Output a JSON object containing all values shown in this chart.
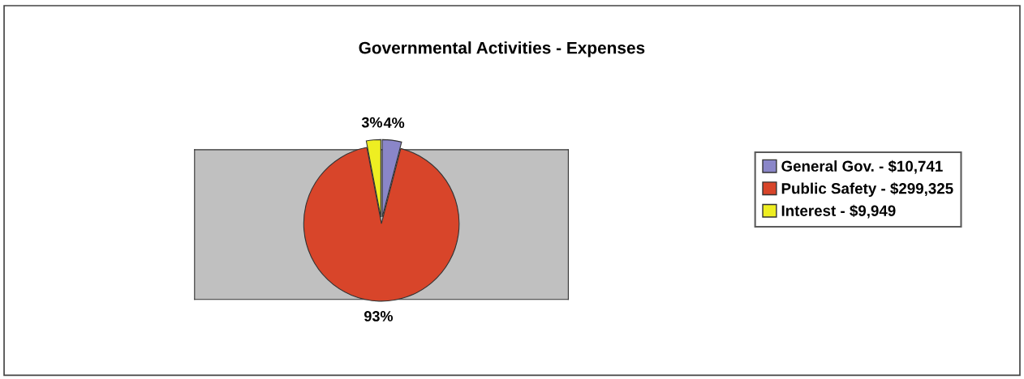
{
  "chart_data": {
    "type": "pie",
    "title": "Governmental Activities - Expenses",
    "categories": [
      "General Gov. - $10,741",
      "Public Safety - $299,325",
      "Interest - $9,949"
    ],
    "values": [
      4,
      93,
      3
    ],
    "value_labels": [
      "4%",
      "93%",
      "3%"
    ],
    "colors": [
      "#8a86c8",
      "#d8452a",
      "#eeee22"
    ],
    "legend": "right"
  }
}
